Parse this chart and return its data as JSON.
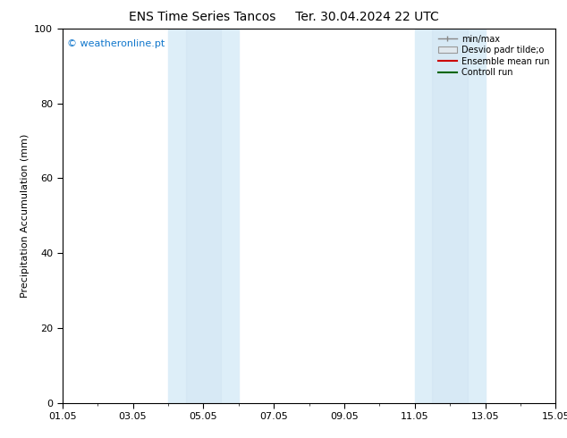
{
  "title": "ENS Time Series Tancos     Ter. 30.04.2024 22 UTC",
  "ylabel": "Precipitation Accumulation (mm)",
  "ylim": [
    0,
    100
  ],
  "yticks": [
    0,
    20,
    40,
    60,
    80,
    100
  ],
  "xlim_start": 0,
  "xlim_end": 14,
  "xtick_positions": [
    0,
    2,
    4,
    6,
    8,
    10,
    12,
    14
  ],
  "xtick_labels": [
    "01.05",
    "03.05",
    "05.05",
    "07.05",
    "09.05",
    "11.05",
    "13.05",
    "15.05"
  ],
  "watermark": "© weatheronline.pt",
  "watermark_color": "#1177cc",
  "shaded_bands": [
    {
      "x_start": 3.0,
      "x_end": 3.5
    },
    {
      "x_start": 3.5,
      "x_end": 5.0
    },
    {
      "x_start": 10.0,
      "x_end": 10.5
    },
    {
      "x_start": 10.5,
      "x_end": 12.0
    }
  ],
  "band_color_light": "#ddeef8",
  "band_color_dark": "#cce0f0",
  "background_color": "#ffffff",
  "legend_labels": [
    "min/max",
    "Desvio padr tilde;o",
    "Ensemble mean run",
    "Controll run"
  ],
  "title_fontsize": 10,
  "axis_fontsize": 8,
  "tick_fontsize": 8,
  "watermark_fontsize": 8
}
